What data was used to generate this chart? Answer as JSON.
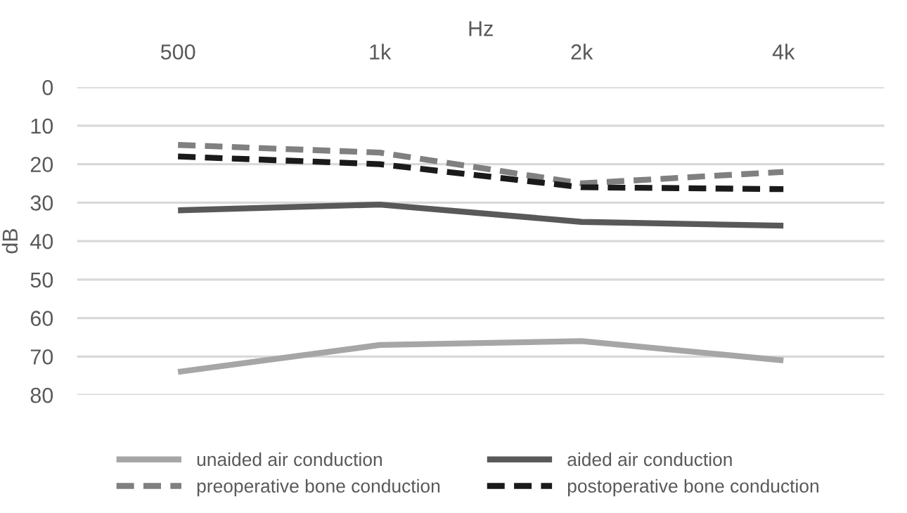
{
  "chart_data": {
    "type": "line",
    "xlabel": "Hz",
    "ylabel": "dB",
    "categories": [
      "500",
      "1k",
      "2k",
      "4k"
    ],
    "series": [
      {
        "name": "unaided air conduction",
        "color": "#a6a6a6",
        "line_style": "solid",
        "values": [
          74,
          67,
          66,
          71
        ]
      },
      {
        "name": "aided air conduction",
        "color": "#595959",
        "line_style": "solid",
        "values": [
          32,
          30.5,
          35,
          36
        ]
      },
      {
        "name": "preoperative bone conduction",
        "color": "#808080",
        "line_style": "dashed",
        "values": [
          15,
          17,
          25,
          22
        ]
      },
      {
        "name": "postoperative bone conduction",
        "color": "#1a1a1a",
        "line_style": "dashed",
        "values": [
          18,
          20,
          26,
          26.5
        ]
      }
    ],
    "ylim": [
      80,
      0
    ],
    "yticks": [
      0,
      10,
      20,
      30,
      40,
      50,
      60,
      70,
      80
    ],
    "grid": "y",
    "legend": "bottom",
    "marker": "none"
  }
}
